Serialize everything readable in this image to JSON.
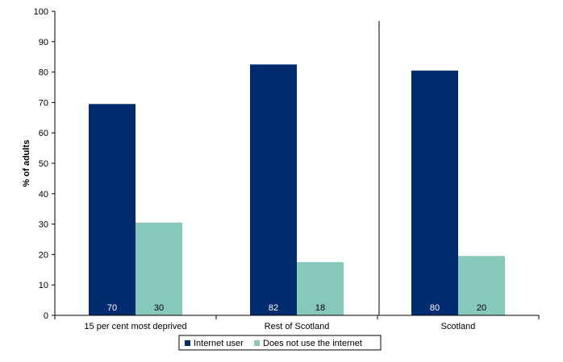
{
  "chart_data": {
    "type": "bar",
    "title": "",
    "xlabel": "",
    "ylabel": "% of adults",
    "ylim": [
      0,
      100
    ],
    "yticks": [
      0,
      10,
      20,
      30,
      40,
      50,
      60,
      70,
      80,
      90,
      100
    ],
    "categories": [
      "15 per cent most deprived",
      "Rest of Scotland",
      "Scotland"
    ],
    "series": [
      {
        "name": "Internet user",
        "color": "#002B6E",
        "values": [
          69.5,
          82.5,
          80.5
        ],
        "labels": [
          "70",
          "82",
          "80"
        ]
      },
      {
        "name": "Does not use the internet",
        "color": "#86C8B9",
        "values": [
          30.5,
          17.5,
          19.5
        ],
        "labels": [
          "30",
          "18",
          "20"
        ]
      }
    ],
    "legend_position": "bottom",
    "grid": false,
    "separator_after_category": 1
  }
}
